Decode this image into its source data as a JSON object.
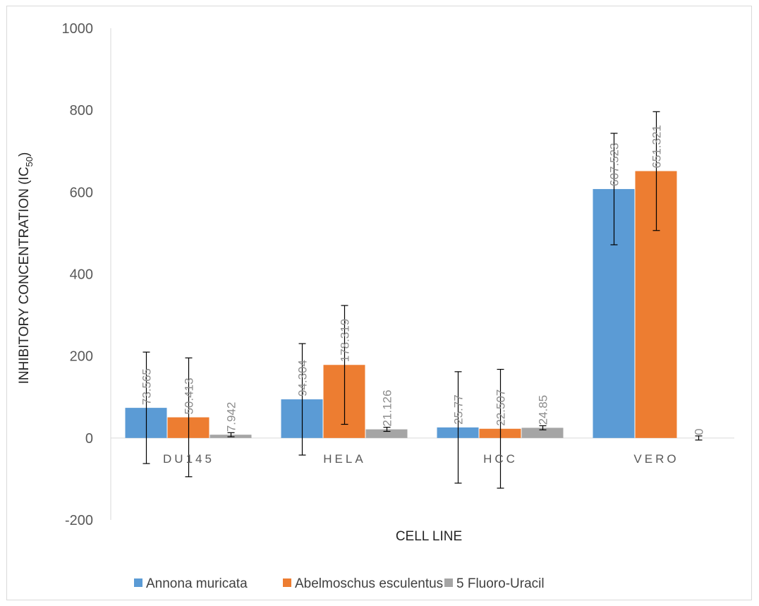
{
  "chart_data": {
    "type": "bar",
    "categories": [
      "DU145",
      "HELA",
      "HCC",
      "VERO"
    ],
    "series": [
      {
        "name": "Annona muricata",
        "color": "#5b9bd5",
        "values": [
          73.565,
          94.304,
          25.77,
          607.523
        ],
        "labels": [
          "73.565",
          "94.304",
          "25.77",
          "607.523"
        ],
        "error": [
          136,
          136,
          136,
          136
        ]
      },
      {
        "name": "Abelmoschus esculentus",
        "color": "#ed7d31",
        "values": [
          50.413,
          178.319,
          22.507,
          651.321
        ],
        "labels": [
          "50.413",
          "178.319",
          "22.507",
          "651.321"
        ],
        "error": [
          145,
          145,
          145,
          145
        ]
      },
      {
        "name": "5 Fluoro-Uracil",
        "color": "#a5a5a5",
        "values": [
          7.942,
          21.126,
          24.85,
          0
        ],
        "labels": [
          "7.942",
          "21.126",
          "24.85",
          "0"
        ],
        "error": [
          5,
          5,
          5,
          5
        ]
      }
    ],
    "ylim": [
      -200,
      1000
    ],
    "yticks": [
      "-200",
      "0",
      "200",
      "400",
      "600",
      "800",
      "1000"
    ],
    "ytick_values": [
      -200,
      0,
      200,
      400,
      600,
      800,
      1000
    ],
    "xlabel": "CELL LINE",
    "ylabel": "INHIBITORY CONCENTRATION (IC",
    "ylabel_sub": "50",
    "ylabel_end": ")",
    "grid": false,
    "legend_position": "bottom"
  }
}
